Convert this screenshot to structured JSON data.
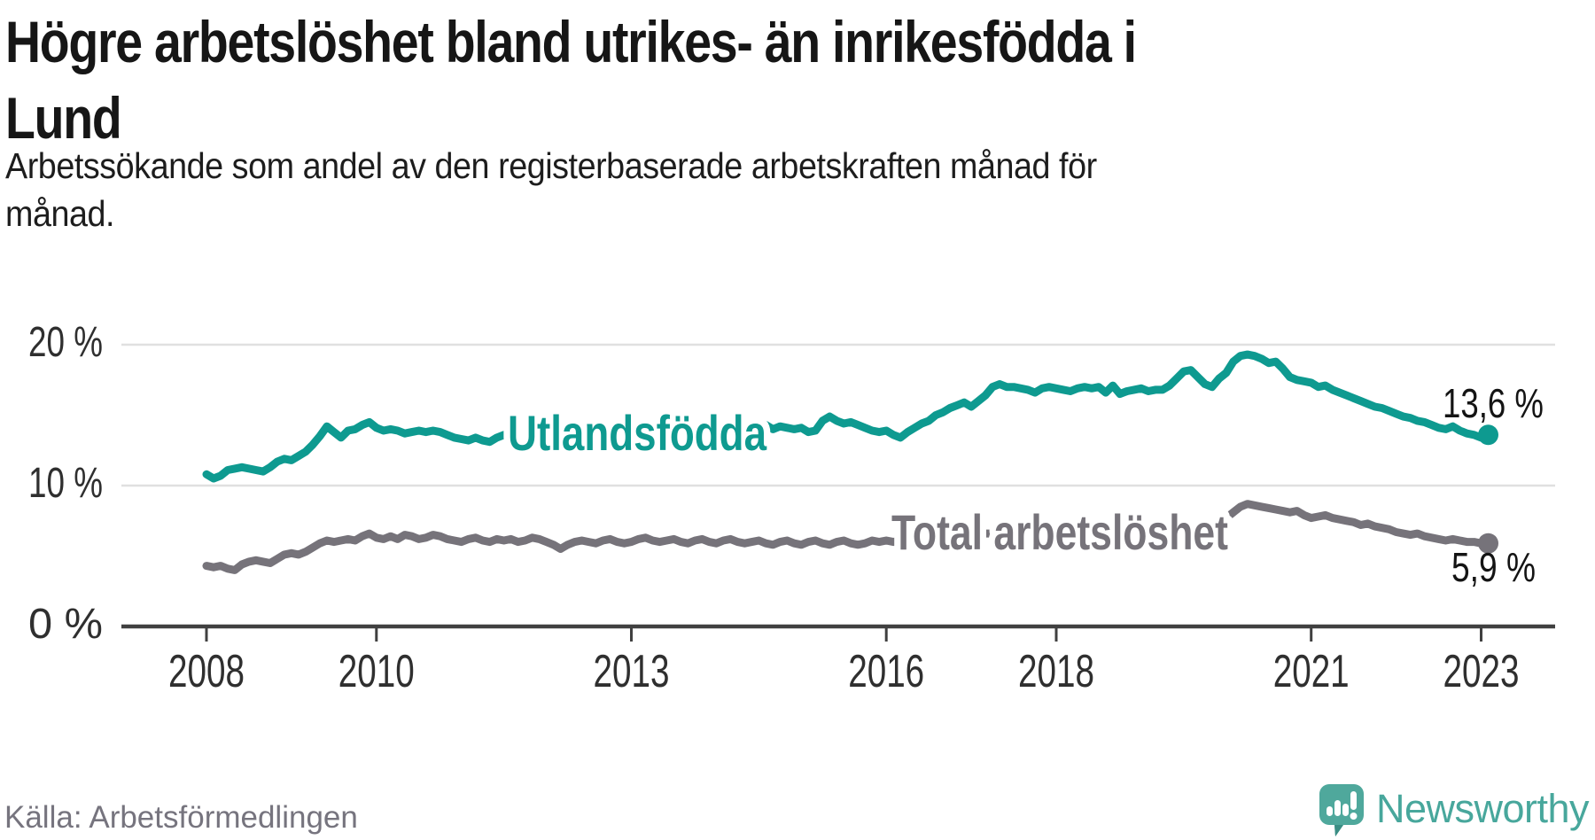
{
  "header": {
    "title_lines": [
      "Högre arbetslöshet bland utrikes- än inrikesfödda i",
      "Lund"
    ],
    "subtitle_lines": [
      "Arbetssökande som andel av den registerbaserade arbetskraften månad för",
      "månad."
    ]
  },
  "footer": {
    "source": "Källa: Arbetsförmedlingen",
    "brand": "Newsworthy",
    "brand_icon": "newsworthy-speech-bubble-bar-chart-icon",
    "brand_color": "#4fa89c",
    "brand_color_dark": "#3a8e84"
  },
  "chart_data": {
    "type": "line",
    "title": "Högre arbetslöshet bland utrikes- än inrikesfödda i Lund",
    "subtitle": "Arbetssökande som andel av den registerbaserade arbetskraften månad för månad.",
    "source": "Källa: Arbetsförmedlingen",
    "xlabel": "",
    "ylabel": "",
    "ylim": [
      0,
      21
    ],
    "grid": "horizontal",
    "legend": "inline-labels",
    "x_start_year": 2008,
    "x_step_months": 1,
    "x_ticks": [
      2008,
      2010,
      2013,
      2016,
      2018,
      2021,
      2023
    ],
    "y_ticks": [
      {
        "value": 0,
        "label": "0 %"
      },
      {
        "value": 10,
        "label": "10 %"
      },
      {
        "value": 20,
        "label": "20 %"
      }
    ],
    "series": [
      {
        "name": "Utlandsfödda",
        "color": "#0e9a90",
        "end_label": "13,6 %",
        "last_value": 13.6,
        "values": [
          10.8,
          10.5,
          10.7,
          11.1,
          11.2,
          11.3,
          11.2,
          11.1,
          11.0,
          11.3,
          11.7,
          11.9,
          11.8,
          12.1,
          12.4,
          12.9,
          13.5,
          14.2,
          13.8,
          13.4,
          13.9,
          14.0,
          14.3,
          14.5,
          14.1,
          13.9,
          14.0,
          13.9,
          13.7,
          13.8,
          13.9,
          13.8,
          13.9,
          13.8,
          13.6,
          13.4,
          13.3,
          13.2,
          13.4,
          13.2,
          13.1,
          13.4,
          13.6,
          13.4,
          13.3,
          13.5,
          13.6,
          13.5,
          13.4,
          13.3,
          13.5,
          13.6,
          13.4,
          13.6,
          13.7,
          13.5,
          13.4,
          13.6,
          13.5,
          13.4,
          13.5,
          13.6,
          13.4,
          13.5,
          13.7,
          13.6,
          13.5,
          13.6,
          13.8,
          13.7,
          13.6,
          13.7,
          13.8,
          13.7,
          13.9,
          13.8,
          14.0,
          14.1,
          13.9,
          14.3,
          14.0,
          14.2,
          14.1,
          14.0,
          14.1,
          13.8,
          13.9,
          14.6,
          14.9,
          14.6,
          14.4,
          14.5,
          14.3,
          14.1,
          13.9,
          13.8,
          13.9,
          13.6,
          13.4,
          13.8,
          14.1,
          14.4,
          14.6,
          15.0,
          15.2,
          15.5,
          15.7,
          15.9,
          15.6,
          16.0,
          16.4,
          17.0,
          17.2,
          17.0,
          17.0,
          16.9,
          16.8,
          16.6,
          16.9,
          17.0,
          16.9,
          16.8,
          16.7,
          16.9,
          17.0,
          16.9,
          17.0,
          16.6,
          17.1,
          16.5,
          16.7,
          16.8,
          16.9,
          16.7,
          16.8,
          16.8,
          17.1,
          17.6,
          18.1,
          18.2,
          17.7,
          17.2,
          17.0,
          17.6,
          18.0,
          18.8,
          19.2,
          19.3,
          19.2,
          19.0,
          18.7,
          18.8,
          18.3,
          17.7,
          17.5,
          17.4,
          17.3,
          17.0,
          17.1,
          16.8,
          16.6,
          16.4,
          16.2,
          16.0,
          15.8,
          15.6,
          15.5,
          15.3,
          15.1,
          14.9,
          14.8,
          14.6,
          14.5,
          14.3,
          14.1,
          14.0,
          14.2,
          13.9,
          13.7,
          13.6,
          13.4,
          13.6
        ]
      },
      {
        "name": "Total arbetslöshet",
        "color": "#76737a",
        "end_label": "5,9 %",
        "last_value": 5.9,
        "values": [
          4.3,
          4.2,
          4.3,
          4.1,
          4.0,
          4.4,
          4.6,
          4.7,
          4.6,
          4.5,
          4.8,
          5.1,
          5.2,
          5.1,
          5.3,
          5.6,
          5.9,
          6.1,
          6.0,
          6.1,
          6.2,
          6.1,
          6.4,
          6.6,
          6.3,
          6.2,
          6.4,
          6.2,
          6.5,
          6.4,
          6.2,
          6.3,
          6.5,
          6.4,
          6.2,
          6.1,
          6.0,
          6.2,
          6.3,
          6.1,
          6.0,
          6.2,
          6.1,
          6.2,
          6.0,
          6.1,
          6.3,
          6.2,
          6.0,
          5.8,
          5.5,
          5.8,
          6.0,
          6.1,
          6.0,
          5.9,
          6.1,
          6.2,
          6.0,
          5.9,
          6.0,
          6.2,
          6.3,
          6.1,
          6.0,
          6.1,
          6.2,
          6.0,
          5.9,
          6.1,
          6.2,
          6.0,
          5.9,
          6.1,
          6.2,
          6.0,
          5.9,
          6.0,
          6.1,
          5.9,
          5.8,
          6.0,
          6.1,
          5.9,
          5.8,
          6.0,
          6.1,
          5.9,
          5.8,
          6.0,
          6.1,
          5.9,
          5.8,
          5.9,
          6.1,
          6.0,
          6.1,
          6.0,
          6.1,
          6.2,
          6.1,
          6.2,
          6.3,
          6.2,
          6.3,
          6.4,
          6.4,
          6.5,
          6.5,
          6.5,
          6.6,
          6.6,
          6.5,
          6.6,
          6.6,
          6.5,
          6.6,
          6.6,
          6.7,
          6.7,
          6.6,
          6.6,
          6.7,
          6.7,
          6.6,
          6.7,
          6.7,
          6.6,
          6.7,
          6.7,
          6.8,
          6.8,
          6.8,
          6.7,
          6.8,
          6.8,
          6.9,
          6.9,
          7.0,
          7.0,
          7.0,
          7.1,
          7.2,
          7.4,
          7.7,
          8.1,
          8.5,
          8.7,
          8.6,
          8.5,
          8.4,
          8.3,
          8.2,
          8.1,
          8.2,
          7.9,
          7.7,
          7.8,
          7.9,
          7.7,
          7.6,
          7.5,
          7.4,
          7.2,
          7.3,
          7.1,
          7.0,
          6.9,
          6.7,
          6.6,
          6.5,
          6.6,
          6.4,
          6.3,
          6.2,
          6.1,
          6.2,
          6.1,
          6.0,
          6.0,
          5.9,
          5.9
        ]
      }
    ]
  },
  "colors": {
    "grid": "#e0e0e0",
    "axis": "#404040",
    "tick_text": "#2f2f2f",
    "end_label_text": "#141414"
  }
}
